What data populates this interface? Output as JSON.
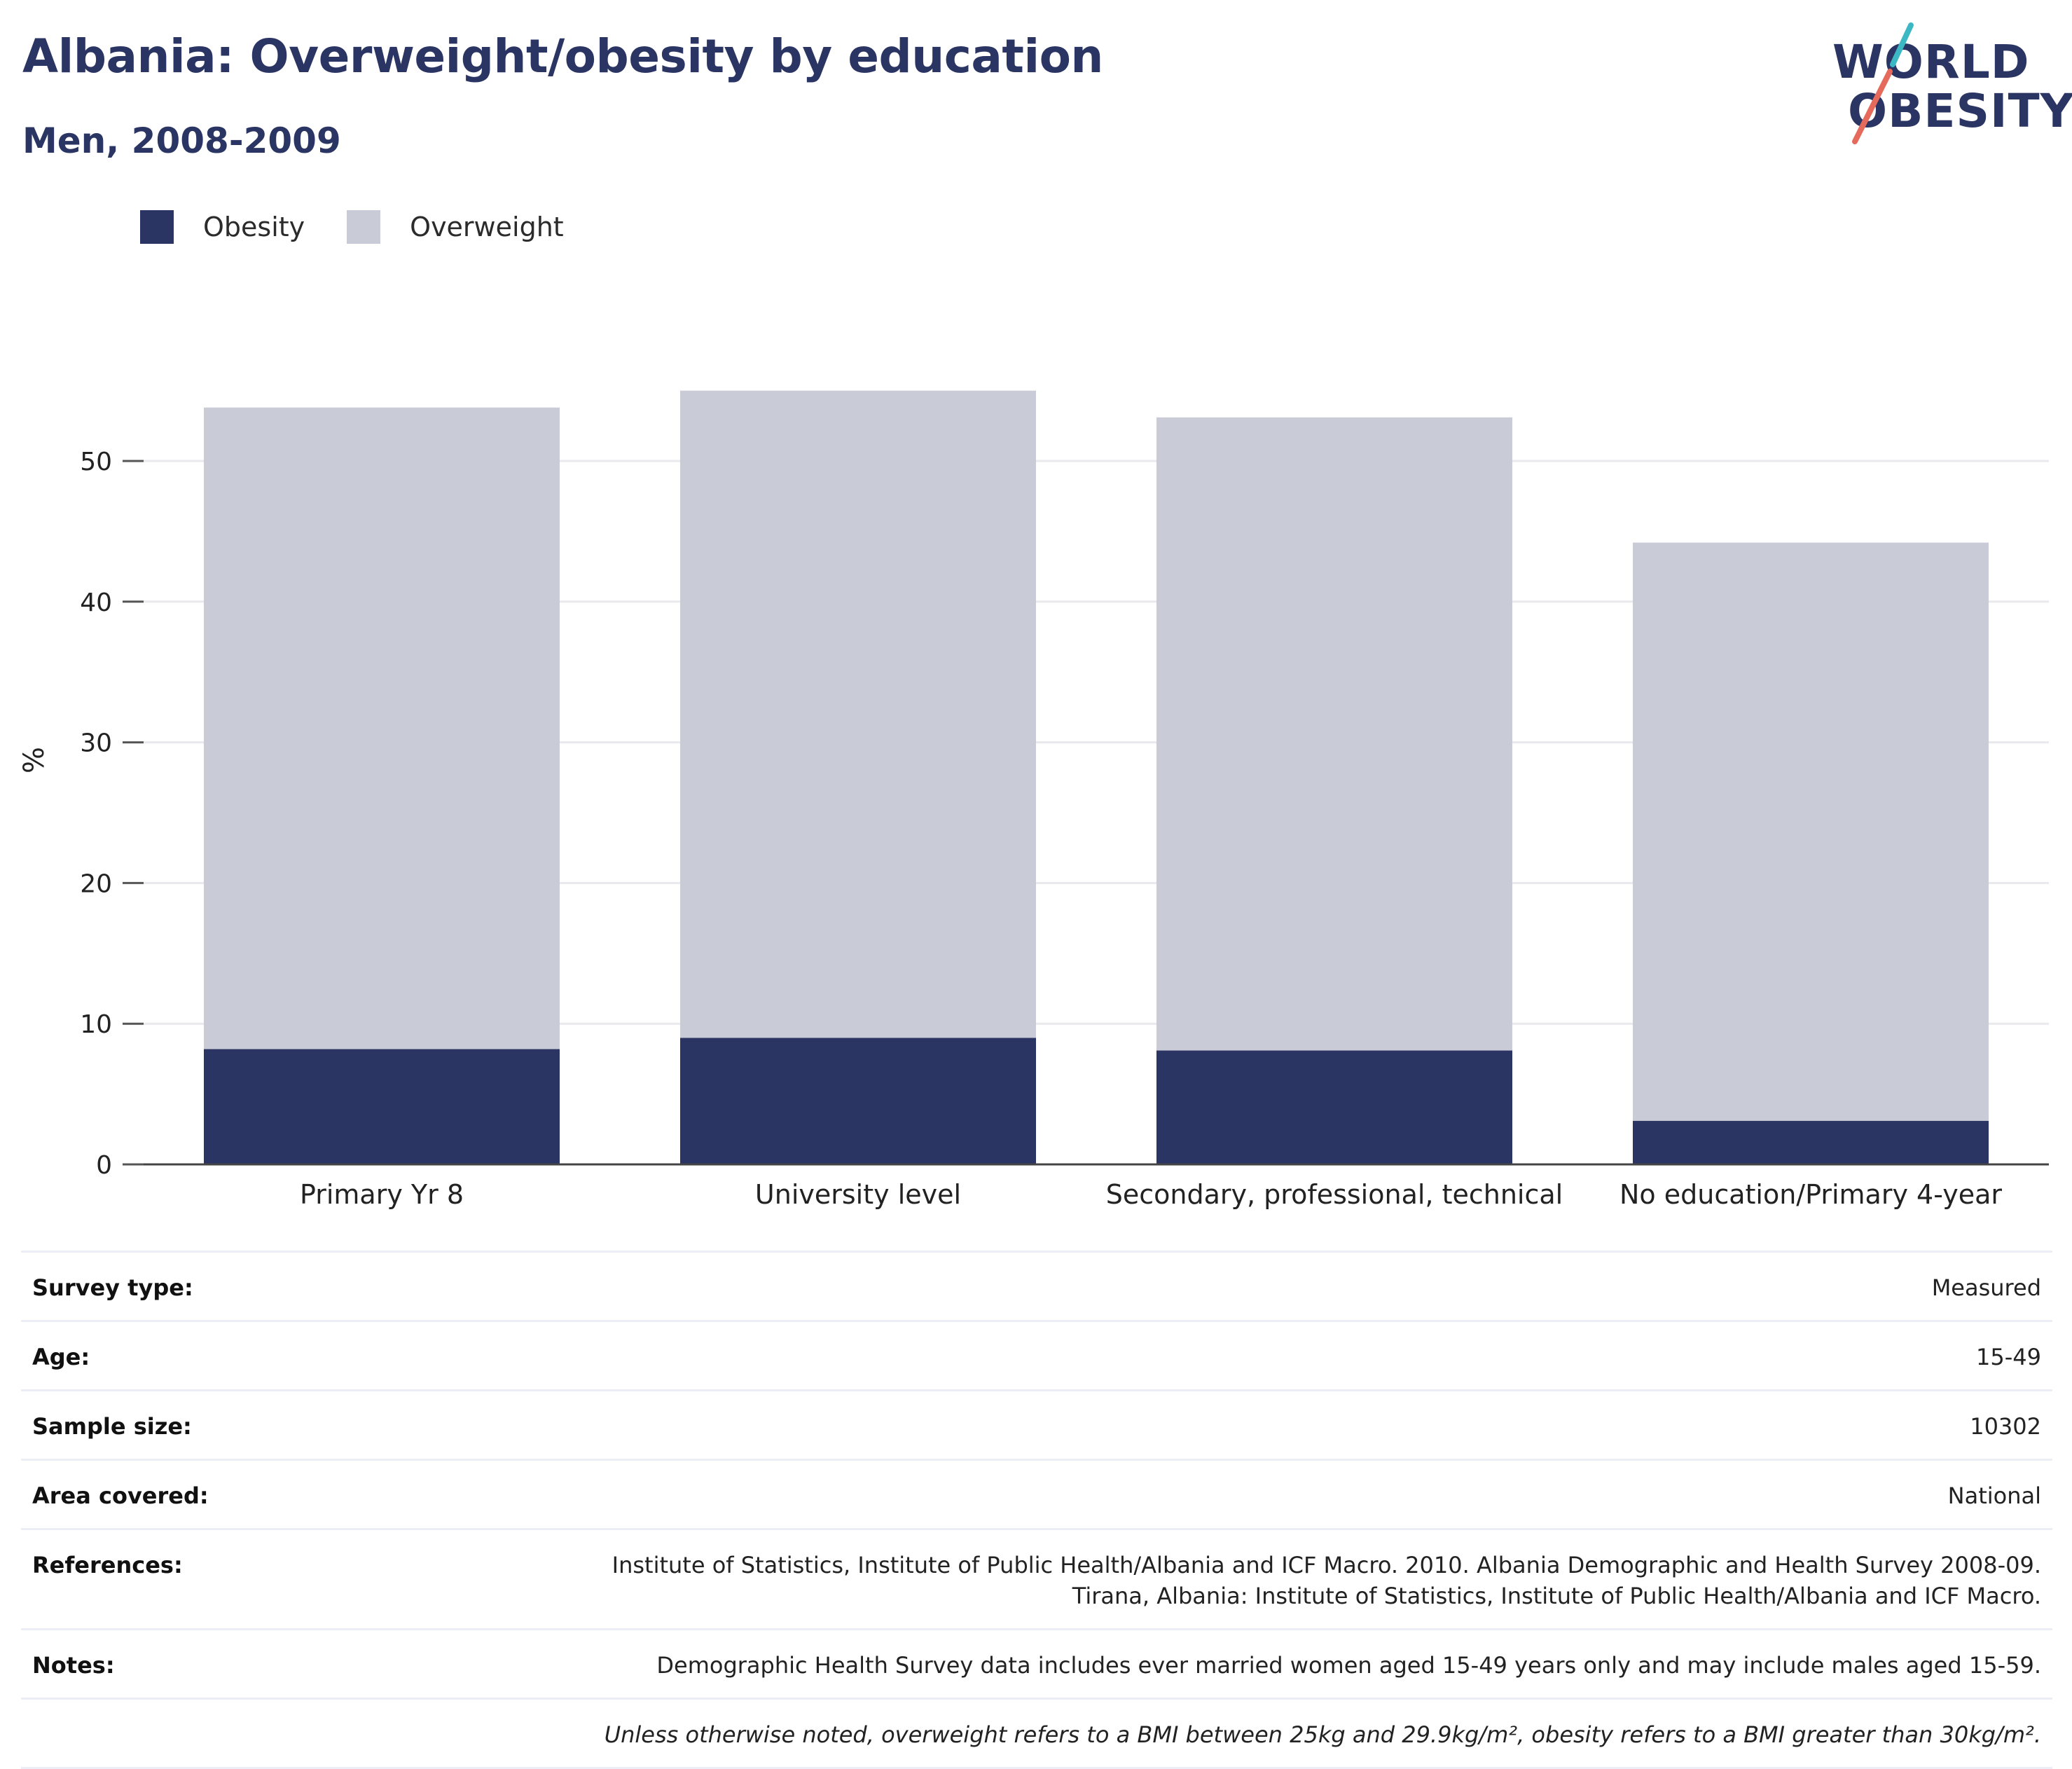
{
  "header": {
    "title": "Albania: Overweight/obesity by education",
    "subtitle": "Men, 2008-2009"
  },
  "logo": {
    "line1": "WORLD",
    "line2": "OBESITY",
    "color": "#2b3563",
    "slash_top_color": "#3bb8c4",
    "slash_bottom_color": "#e56a5c"
  },
  "legend": [
    {
      "label": "Obesity",
      "color": "#2b3563"
    },
    {
      "label": "Overweight",
      "color": "#c9cbd6"
    }
  ],
  "chart_data": {
    "type": "bar",
    "stacked": true,
    "categories": [
      "Primary Yr 8",
      "University level",
      "Secondary, professional, technical",
      "No education/Primary 4-year"
    ],
    "series": [
      {
        "name": "Obesity",
        "values": [
          8.2,
          9.0,
          8.1,
          3.1
        ],
        "color": "#2b3563"
      },
      {
        "name": "Overweight",
        "values": [
          45.6,
          46.0,
          45.0,
          41.1
        ],
        "color": "#c9cbd6"
      }
    ],
    "ylabel": "%",
    "ylim": [
      0,
      60
    ],
    "yticks": [
      0,
      10,
      20,
      30,
      40,
      50
    ],
    "grid": true,
    "legend_position": "top-left"
  },
  "info": [
    {
      "label": "Survey type:",
      "value": "Measured"
    },
    {
      "label": "Age:",
      "value": "15-49"
    },
    {
      "label": "Sample size:",
      "value": "10302"
    },
    {
      "label": "Area covered:",
      "value": "National"
    },
    {
      "label": "References:",
      "value": "Institute of Statistics, Institute of Public Health/Albania and ICF Macro. 2010. Albania Demographic and Health Survey 2008-09. Tirana, Albania: Institute of Statistics, Institute of Public Health/Albania and ICF Macro."
    },
    {
      "label": "Notes:",
      "value": "Demographic Health Survey data includes ever married women aged 15-49 years only and may include males aged 15-59."
    }
  ],
  "footnote": "Unless otherwise noted, overweight refers to a BMI between 25kg and 29.9kg/m², obesity refers to a BMI greater than 30kg/m²."
}
